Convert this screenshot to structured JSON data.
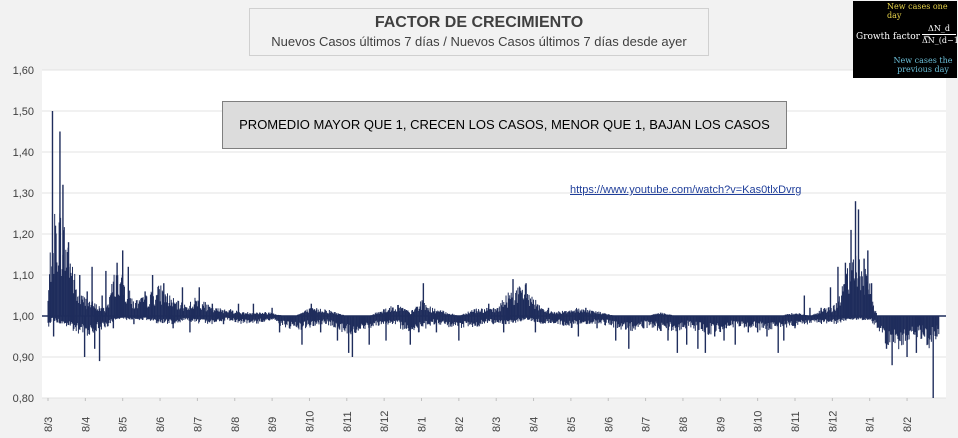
{
  "chart_data": {
    "type": "area",
    "title": "FACTOR DE CRECIMIENTO",
    "subtitle": "Nuevos Casos últimos 7 días / Nuevos Casos últimos 7 días desde ayer",
    "note": "PROMEDIO MAYOR QUE 1, CRECEN LOS CASOS, MENOR QUE 1, BAJAN LOS CASOS",
    "link": "https://www.youtube.com/watch?v=Kas0tlxDvrg",
    "baseline": 1.0,
    "ylim": [
      0.8,
      1.6
    ],
    "yticks": [
      "0,80",
      "0,90",
      "1,00",
      "1,10",
      "1,20",
      "1,30",
      "1,40",
      "1,50",
      "1,60"
    ],
    "xticks": [
      "8/3",
      "8/4",
      "8/5",
      "8/6",
      "8/7",
      "8/8",
      "8/9",
      "8/10",
      "8/11",
      "8/12",
      "8/1",
      "8/2",
      "8/3",
      "8/4",
      "8/5",
      "8/6",
      "8/7",
      "8/8",
      "8/9",
      "8/10",
      "8/11",
      "8/12",
      "8/1",
      "8/2"
    ],
    "series_color": "#1f2d5c",
    "envelope": [
      [
        0.0,
        1.05,
        0.97
      ],
      [
        0.1,
        1.25,
        0.99
      ],
      [
        0.3,
        1.28,
        0.98
      ],
      [
        0.55,
        1.2,
        0.97
      ],
      [
        0.8,
        1.06,
        0.95
      ],
      [
        1.0,
        1.05,
        0.95
      ],
      [
        1.3,
        1.03,
        0.96
      ],
      [
        1.55,
        1.02,
        0.97
      ],
      [
        1.8,
        1.12,
        0.99
      ],
      [
        2.0,
        1.1,
        0.99
      ],
      [
        2.3,
        1.04,
        0.99
      ],
      [
        2.6,
        1.05,
        0.99
      ],
      [
        3.0,
        1.08,
        0.98
      ],
      [
        3.4,
        1.04,
        0.98
      ],
      [
        3.7,
        1.03,
        0.99
      ],
      [
        4.0,
        1.05,
        0.98
      ],
      [
        4.4,
        1.02,
        0.98
      ],
      [
        4.8,
        1.02,
        0.99
      ],
      [
        5.2,
        1.01,
        0.98
      ],
      [
        5.6,
        1.01,
        0.98
      ],
      [
        6.0,
        1.01,
        0.99
      ],
      [
        6.3,
        1.0,
        0.97
      ],
      [
        6.6,
        1.0,
        0.96
      ],
      [
        7.0,
        1.02,
        0.97
      ],
      [
        7.4,
        1.02,
        0.98
      ],
      [
        7.7,
        1.01,
        0.97
      ],
      [
        8.0,
        1.0,
        0.95
      ],
      [
        8.3,
        1.0,
        0.96
      ],
      [
        8.6,
        1.0,
        0.97
      ],
      [
        9.0,
        1.02,
        0.98
      ],
      [
        9.4,
        1.03,
        0.97
      ],
      [
        9.7,
        1.01,
        0.96
      ],
      [
        10.0,
        1.04,
        0.96
      ],
      [
        10.3,
        1.02,
        0.98
      ],
      [
        10.7,
        1.01,
        0.97
      ],
      [
        11.0,
        1.0,
        0.97
      ],
      [
        11.4,
        1.02,
        0.97
      ],
      [
        11.7,
        1.02,
        0.98
      ],
      [
        12.0,
        1.02,
        0.98
      ],
      [
        12.4,
        1.07,
        0.98
      ],
      [
        12.8,
        1.08,
        0.99
      ],
      [
        13.2,
        1.02,
        0.98
      ],
      [
        13.6,
        1.01,
        0.98
      ],
      [
        14.0,
        1.02,
        0.97
      ],
      [
        14.4,
        1.02,
        0.98
      ],
      [
        14.8,
        1.01,
        0.98
      ],
      [
        15.2,
        1.0,
        0.97
      ],
      [
        15.6,
        1.0,
        0.96
      ],
      [
        16.0,
        1.0,
        0.97
      ],
      [
        16.4,
        1.01,
        0.96
      ],
      [
        16.8,
        1.0,
        0.96
      ],
      [
        17.2,
        1.0,
        0.97
      ],
      [
        17.6,
        1.0,
        0.95
      ],
      [
        18.0,
        1.0,
        0.96
      ],
      [
        18.4,
        1.0,
        0.97
      ],
      [
        18.8,
        1.0,
        0.97
      ],
      [
        19.2,
        1.0,
        0.96
      ],
      [
        19.6,
        1.0,
        0.97
      ],
      [
        20.0,
        1.01,
        0.97
      ],
      [
        20.4,
        1.0,
        0.98
      ],
      [
        20.8,
        1.02,
        0.98
      ],
      [
        21.1,
        1.03,
        0.98
      ],
      [
        21.4,
        1.12,
        0.99
      ],
      [
        21.7,
        1.17,
        0.99
      ],
      [
        22.0,
        1.08,
        0.99
      ],
      [
        22.2,
        1.0,
        0.97
      ],
      [
        22.4,
        1.0,
        0.93
      ],
      [
        22.7,
        1.0,
        0.91
      ],
      [
        23.0,
        1.0,
        0.93
      ],
      [
        23.3,
        1.0,
        0.95
      ],
      [
        23.6,
        1.0,
        0.92
      ],
      [
        23.85,
        1.0,
        0.95
      ]
    ],
    "spikes": [
      [
        0.12,
        1.5
      ],
      [
        0.15,
        0.95
      ],
      [
        0.2,
        1.22
      ],
      [
        0.32,
        1.45
      ],
      [
        0.4,
        1.32
      ],
      [
        0.55,
        1.18
      ],
      [
        0.72,
        0.98
      ],
      [
        0.85,
        1.1
      ],
      [
        0.98,
        0.9
      ],
      [
        1.05,
        1.06
      ],
      [
        1.18,
        1.12
      ],
      [
        1.25,
        0.92
      ],
      [
        1.38,
        0.89
      ],
      [
        1.45,
        1.05
      ],
      [
        1.55,
        1.11
      ],
      [
        1.75,
        0.97
      ],
      [
        1.85,
        1.13
      ],
      [
        2.0,
        1.16
      ],
      [
        2.15,
        1.12
      ],
      [
        2.3,
        0.98
      ],
      [
        2.6,
        1.06
      ],
      [
        2.8,
        1.1
      ],
      [
        3.1,
        1.08
      ],
      [
        3.35,
        0.97
      ],
      [
        3.6,
        1.07
      ],
      [
        3.8,
        0.96
      ],
      [
        4.05,
        1.07
      ],
      [
        4.4,
        1.03
      ],
      [
        4.7,
        0.98
      ],
      [
        5.1,
        1.03
      ],
      [
        5.5,
        1.03
      ],
      [
        6.0,
        1.02
      ],
      [
        6.2,
        0.96
      ],
      [
        6.8,
        0.93
      ],
      [
        7.05,
        1.03
      ],
      [
        7.3,
        0.96
      ],
      [
        7.75,
        0.94
      ],
      [
        8.05,
        0.91
      ],
      [
        8.15,
        0.9
      ],
      [
        8.6,
        0.93
      ],
      [
        8.9,
        1.01
      ],
      [
        9.05,
        0.94
      ],
      [
        9.4,
        1.02
      ],
      [
        9.7,
        0.93
      ],
      [
        10.05,
        1.08
      ],
      [
        10.2,
        0.98
      ],
      [
        10.4,
        0.96
      ],
      [
        11.0,
        0.94
      ],
      [
        11.4,
        1.01
      ],
      [
        11.8,
        1.03
      ],
      [
        12.2,
        0.96
      ],
      [
        12.45,
        1.09
      ],
      [
        12.6,
        1.04
      ],
      [
        12.8,
        1.08
      ],
      [
        13.05,
        0.96
      ],
      [
        13.4,
        1.02
      ],
      [
        13.8,
        0.98
      ],
      [
        14.2,
        0.95
      ],
      [
        14.4,
        1.02
      ],
      [
        14.7,
        0.97
      ],
      [
        15.2,
        0.94
      ],
      [
        15.55,
        0.92
      ],
      [
        15.95,
        0.97
      ],
      [
        16.1,
        1.0
      ],
      [
        16.6,
        0.94
      ],
      [
        16.85,
        0.91
      ],
      [
        17.1,
        0.93
      ],
      [
        17.4,
        0.92
      ],
      [
        17.6,
        0.91
      ],
      [
        17.85,
        0.95
      ],
      [
        18.1,
        0.94
      ],
      [
        18.4,
        0.93
      ],
      [
        18.75,
        0.96
      ],
      [
        19.0,
        0.96
      ],
      [
        19.25,
        0.95
      ],
      [
        19.55,
        0.91
      ],
      [
        19.7,
        0.94
      ],
      [
        20.0,
        0.97
      ],
      [
        20.25,
        1.05
      ],
      [
        20.4,
        1.02
      ],
      [
        20.7,
        1.02
      ],
      [
        20.95,
        1.07
      ],
      [
        21.15,
        1.12
      ],
      [
        21.35,
        1.13
      ],
      [
        21.5,
        1.21
      ],
      [
        21.62,
        1.28
      ],
      [
        21.7,
        1.26
      ],
      [
        21.85,
        1.14
      ],
      [
        21.95,
        1.16
      ],
      [
        22.05,
        1.08
      ],
      [
        22.25,
        1.0
      ],
      [
        22.45,
        0.92
      ],
      [
        22.6,
        0.88
      ],
      [
        22.8,
        0.94
      ],
      [
        23.0,
        0.9
      ],
      [
        23.25,
        0.91
      ],
      [
        23.4,
        0.96
      ],
      [
        23.55,
        0.93
      ],
      [
        23.7,
        0.8
      ],
      [
        23.8,
        0.95
      ]
    ]
  },
  "formula": {
    "top_label": "New cases one day",
    "label": "Growth factor =",
    "numerator": "ΔN_d",
    "denominator": "ΔN_(d−1)",
    "bottom_label": "New cases the previous day"
  }
}
